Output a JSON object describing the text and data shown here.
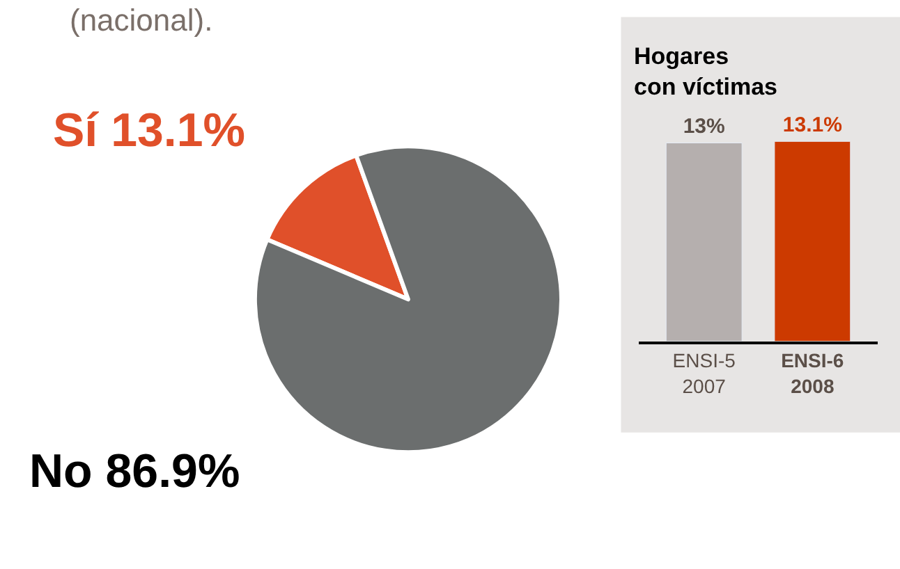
{
  "chart_data": [
    {
      "type": "pie",
      "title": "(nacional).",
      "categories": [
        "Sí 13.1%",
        "No 86.9%"
      ],
      "values": [
        13.1,
        86.9
      ],
      "colors": [
        "#e0502a",
        "#6b6e6e"
      ]
    },
    {
      "type": "bar",
      "title": "Hogares\ncon víctimas",
      "categories": [
        "ENSI-5\n2007",
        "ENSI-6\n2008"
      ],
      "values": [
        13,
        13.1
      ],
      "value_labels": [
        "13%",
        "13.1%"
      ],
      "colors": [
        "#b5afae",
        "#cc3a00"
      ]
    }
  ]
}
